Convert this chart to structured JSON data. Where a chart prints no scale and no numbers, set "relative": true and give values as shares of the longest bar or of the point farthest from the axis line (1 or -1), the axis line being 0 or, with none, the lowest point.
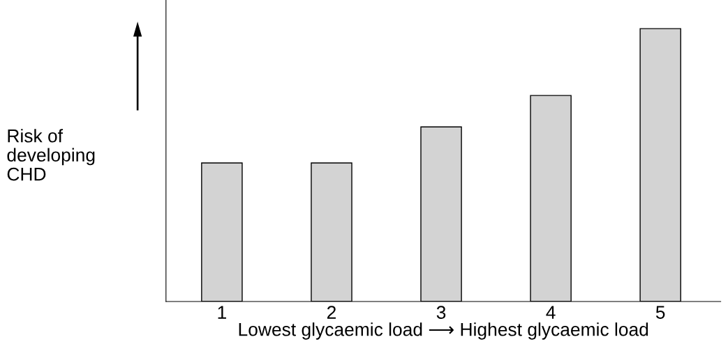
{
  "chart_data": {
    "type": "bar",
    "relative": true,
    "categories": [
      "1",
      "2",
      "3",
      "4",
      "5"
    ],
    "values": [
      0.508,
      0.508,
      0.64,
      0.755,
      1.0
    ],
    "color": "#d3d3d3",
    "xlabel": "Lowest glycaemic load ⟶ Highest glycaemic load",
    "ylabel": "Risk of\ndeveloping\nCHD",
    "grid": false,
    "legend": false
  }
}
